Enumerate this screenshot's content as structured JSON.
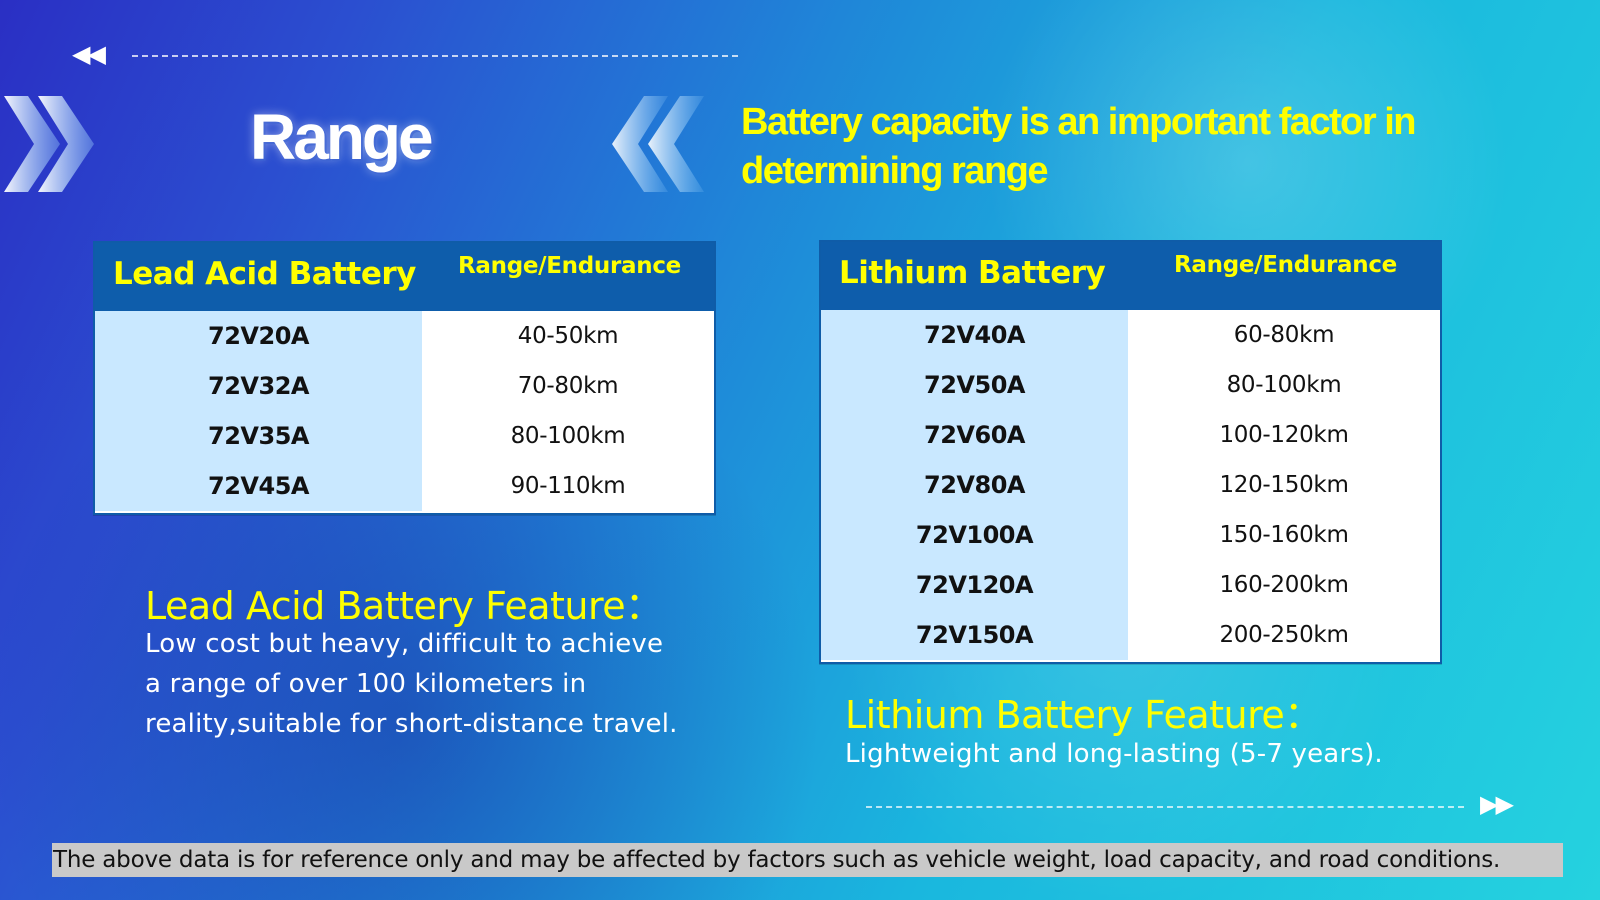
{
  "page": {
    "title": "Range",
    "headline": "Battery capacity is an important factor in determining range",
    "nav": {
      "left_arrows": "◀◀",
      "right_arrows": "▶▶"
    }
  },
  "lead_acid_table": {
    "title": "Lead Acid Battery",
    "range_header": "Range/Endurance",
    "rows": [
      {
        "model": "72V20A",
        "range": "40-50km"
      },
      {
        "model": "72V32A",
        "range": "70-80km"
      },
      {
        "model": "72V35A",
        "range": "80-100km"
      },
      {
        "model": "72V45A",
        "range": "90-110km"
      }
    ]
  },
  "lithium_table": {
    "title": "Lithium Battery",
    "range_header": "Range/Endurance",
    "rows": [
      {
        "model": "72V40A",
        "range": "60-80km"
      },
      {
        "model": "72V50A",
        "range": "80-100km"
      },
      {
        "model": "72V60A",
        "range": "100-120km"
      },
      {
        "model": "72V80A",
        "range": "120-150km"
      },
      {
        "model": "72V100A",
        "range": "150-160km"
      },
      {
        "model": "72V120A",
        "range": "160-200km"
      },
      {
        "model": "72V150A",
        "range": "200-250km"
      }
    ]
  },
  "lead_acid_feature": {
    "title": "Lead Acid Battery Feature：",
    "text": "Low cost but heavy, difficult to achieve a range of over 100 kilometers in reality,suitable for short-distance travel."
  },
  "lithium_feature": {
    "title": "Lithium Battery Feature：",
    "text": "Lightweight and long-lasting (5-7 years)."
  },
  "footer": {
    "note": "The above data is for reference only and may be affected by factors such as vehicle weight, load capacity, and road conditions."
  },
  "colors": {
    "accent_yellow": "#ffff00",
    "table_header_blue": "#0e5dab",
    "table_model_cell": "#c9e8ff",
    "footer_gray": "#c9c9c9"
  },
  "icons": {
    "left_chevrons": "double-chevron-right-icon",
    "right_chevrons": "double-chevron-left-icon"
  }
}
